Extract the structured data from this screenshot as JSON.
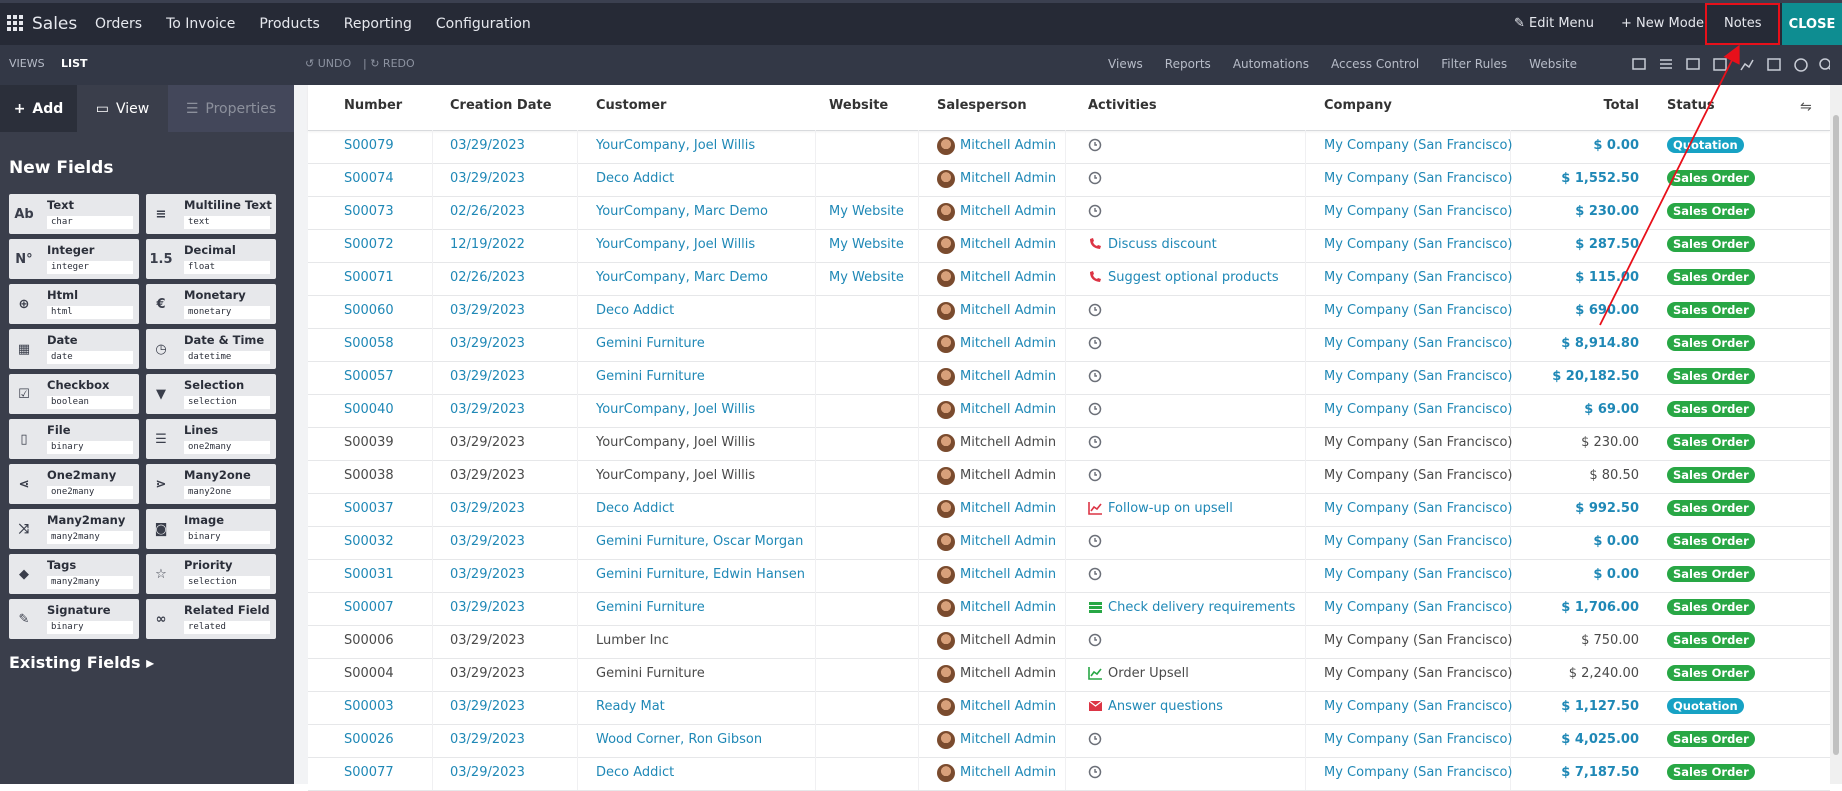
{
  "navbar": {
    "app": "Sales",
    "menus": [
      "Orders",
      "To Invoice",
      "Products",
      "Reporting",
      "Configuration"
    ],
    "edit_menu": "Edit Menu",
    "new_model": "New Model",
    "notes": "Notes",
    "close": "CLOSE"
  },
  "toolbar": {
    "views_tab": "VIEWS",
    "list_tab": "LIST",
    "undo": "UNDO",
    "redo": "REDO",
    "links": [
      "Views",
      "Reports",
      "Automations",
      "Access Control",
      "Filter Rules",
      "Website"
    ]
  },
  "sidebar": {
    "tabs": [
      "Add",
      "View",
      "Properties"
    ],
    "new_fields_title": "New Fields",
    "existing_fields": "Existing Fields",
    "fields": [
      {
        "icon": "Ab",
        "label": "Text",
        "type": "char"
      },
      {
        "icon": "≡",
        "label": "Multiline Text",
        "type": "text"
      },
      {
        "icon": "N°",
        "label": "Integer",
        "type": "integer"
      },
      {
        "icon": "1.5",
        "label": "Decimal",
        "type": "float"
      },
      {
        "icon": "⊕",
        "label": "Html",
        "type": "html"
      },
      {
        "icon": "€",
        "label": "Monetary",
        "type": "monetary"
      },
      {
        "icon": "▦",
        "label": "Date",
        "type": "date"
      },
      {
        "icon": "◷",
        "label": "Date & Time",
        "type": "datetime"
      },
      {
        "icon": "☑",
        "label": "Checkbox",
        "type": "boolean"
      },
      {
        "icon": "▼",
        "label": "Selection",
        "type": "selection"
      },
      {
        "icon": "▯",
        "label": "File",
        "type": "binary"
      },
      {
        "icon": "☰",
        "label": "Lines",
        "type": "one2many"
      },
      {
        "icon": "⋖",
        "label": "One2many",
        "type": "one2many"
      },
      {
        "icon": "⋗",
        "label": "Many2one",
        "type": "many2one"
      },
      {
        "icon": "⤨",
        "label": "Many2many",
        "type": "many2many"
      },
      {
        "icon": "◙",
        "label": "Image",
        "type": "binary"
      },
      {
        "icon": "◆",
        "label": "Tags",
        "type": "many2many"
      },
      {
        "icon": "☆",
        "label": "Priority",
        "type": "selection"
      },
      {
        "icon": "✎",
        "label": "Signature",
        "type": "binary"
      },
      {
        "icon": "∞",
        "label": "Related Field",
        "type": "related"
      }
    ]
  },
  "table": {
    "columns": [
      "Number",
      "Creation Date",
      "Customer",
      "Website",
      "Salesperson",
      "Activities",
      "Company",
      "Total",
      "Status"
    ],
    "rows": [
      {
        "number": "S00079",
        "date": "03/29/2023",
        "customer": "YourCompany, Joel Willis",
        "salesperson": "Mitchell Admin",
        "activity": {
          "icon": "clock"
        },
        "company": "My Company (San Francisco)",
        "total": "$ 0.00",
        "status": "Quotation",
        "color": "#1f88b6"
      },
      {
        "number": "S00074",
        "date": "03/29/2023",
        "customer": "Deco Addict",
        "salesperson": "Mitchell Admin",
        "activity": {
          "icon": "clock"
        },
        "company": "My Company (San Francisco)",
        "total": "$ 1,552.50",
        "status": "Sales Order",
        "color": "#1f88b6"
      },
      {
        "number": "S00073",
        "date": "02/26/2023",
        "customer": "YourCompany, Marc Demo",
        "website": "My Website",
        "salesperson": "Mitchell Admin",
        "activity": {
          "icon": "clock"
        },
        "company": "My Company (San Francisco)",
        "total": "$ 230.00",
        "status": "Sales Order",
        "color": "#1f88b6"
      },
      {
        "number": "S00072",
        "date": "12/19/2022",
        "customer": "YourCompany, Joel Willis",
        "website": "My Website",
        "salesperson": "Mitchell Admin",
        "activity": {
          "icon": "phone",
          "icon_color": "#dc3545",
          "text": "Discuss discount"
        },
        "company": "My Company (San Francisco)",
        "total": "$ 287.50",
        "status": "Sales Order",
        "color": "#1f88b6"
      },
      {
        "number": "S00071",
        "date": "02/26/2023",
        "customer": "YourCompany, Marc Demo",
        "website": "My Website",
        "salesperson": "Mitchell Admin",
        "activity": {
          "icon": "phone",
          "icon_color": "#dc3545",
          "text": "Suggest optional products"
        },
        "company": "My Company (San Francisco)",
        "total": "$ 115.00",
        "status": "Sales Order",
        "color": "#1f88b6"
      },
      {
        "number": "S00060",
        "date": "03/29/2023",
        "customer": "Deco Addict",
        "salesperson": "Mitchell Admin",
        "activity": {
          "icon": "clock"
        },
        "company": "My Company (San Francisco)",
        "total": "$ 690.00",
        "status": "Sales Order",
        "color": "#1f88b6"
      },
      {
        "number": "S00058",
        "date": "03/29/2023",
        "customer": "Gemini Furniture",
        "salesperson": "Mitchell Admin",
        "activity": {
          "icon": "clock"
        },
        "company": "My Company (San Francisco)",
        "total": "$ 8,914.80",
        "status": "Sales Order",
        "color": "#1f88b6"
      },
      {
        "number": "S00057",
        "date": "03/29/2023",
        "customer": "Gemini Furniture",
        "salesperson": "Mitchell Admin",
        "activity": {
          "icon": "clock"
        },
        "company": "My Company (San Francisco)",
        "total": "$ 20,182.50",
        "status": "Sales Order",
        "color": "#1f88b6"
      },
      {
        "number": "S00040",
        "date": "03/29/2023",
        "customer": "YourCompany, Joel Willis",
        "salesperson": "Mitchell Admin",
        "activity": {
          "icon": "clock"
        },
        "company": "My Company (San Francisco)",
        "total": "$ 69.00",
        "status": "Sales Order",
        "color": "#1f88b6"
      },
      {
        "number": "S00039",
        "date": "03/29/2023",
        "customer": "YourCompany, Joel Willis",
        "salesperson": "Mitchell Admin",
        "activity": {
          "icon": "clock"
        },
        "company": "My Company (San Francisco)",
        "total": "$ 230.00",
        "status": "Sales Order",
        "color": "#4a4a4a"
      },
      {
        "number": "S00038",
        "date": "03/29/2023",
        "customer": "YourCompany, Joel Willis",
        "salesperson": "Mitchell Admin",
        "activity": {
          "icon": "clock"
        },
        "company": "My Company (San Francisco)",
        "total": "$ 80.50",
        "status": "Sales Order",
        "color": "#4a4a4a"
      },
      {
        "number": "S00037",
        "date": "03/29/2023",
        "customer": "Deco Addict",
        "salesperson": "Mitchell Admin",
        "activity": {
          "icon": "chart",
          "icon_color": "#dc3545",
          "text": "Follow-up on upsell"
        },
        "company": "My Company (San Francisco)",
        "total": "$ 992.50",
        "status": "Sales Order",
        "color": "#1f88b6"
      },
      {
        "number": "S00032",
        "date": "03/29/2023",
        "customer": "Gemini Furniture, Oscar Morgan",
        "salesperson": "Mitchell Admin",
        "activity": {
          "icon": "clock"
        },
        "company": "My Company (San Francisco)",
        "total": "$ 0.00",
        "status": "Sales Order",
        "color": "#1f88b6"
      },
      {
        "number": "S00031",
        "date": "03/29/2023",
        "customer": "Gemini Furniture, Edwin Hansen",
        "salesperson": "Mitchell Admin",
        "activity": {
          "icon": "clock"
        },
        "company": "My Company (San Francisco)",
        "total": "$ 0.00",
        "status": "Sales Order",
        "color": "#1f88b6"
      },
      {
        "number": "S00007",
        "date": "03/29/2023",
        "customer": "Gemini Furniture",
        "salesperson": "Mitchell Admin",
        "activity": {
          "icon": "list",
          "icon_color": "#28a745",
          "text": "Check delivery requirements"
        },
        "company": "My Company (San Francisco)",
        "total": "$ 1,706.00",
        "status": "Sales Order",
        "color": "#1f88b6"
      },
      {
        "number": "S00006",
        "date": "03/29/2023",
        "customer": "Lumber Inc",
        "salesperson": "Mitchell Admin",
        "activity": {
          "icon": "clock"
        },
        "company": "My Company (San Francisco)",
        "total": "$ 750.00",
        "status": "Sales Order",
        "color": "#4a4a4a"
      },
      {
        "number": "S00004",
        "date": "03/29/2023",
        "customer": "Gemini Furniture",
        "salesperson": "Mitchell Admin",
        "activity": {
          "icon": "chart",
          "icon_color": "#28a745",
          "text": "Order Upsell"
        },
        "company": "My Company (San Francisco)",
        "total": "$ 2,240.00",
        "status": "Sales Order",
        "color": "#4a4a4a"
      },
      {
        "number": "S00003",
        "date": "03/29/2023",
        "customer": "Ready Mat",
        "salesperson": "Mitchell Admin",
        "activity": {
          "icon": "envelope",
          "icon_color": "#dc3545",
          "text": "Answer questions"
        },
        "company": "My Company (San Francisco)",
        "total": "$ 1,127.50",
        "status": "Quotation",
        "color": "#1f88b6"
      },
      {
        "number": "S00026",
        "date": "03/29/2023",
        "customer": "Wood Corner, Ron Gibson",
        "salesperson": "Mitchell Admin",
        "activity": {
          "icon": "clock"
        },
        "company": "My Company (San Francisco)",
        "total": "$ 4,025.00",
        "status": "Sales Order",
        "color": "#1f88b6"
      },
      {
        "number": "S00077",
        "date": "03/29/2023",
        "customer": "Deco Addict",
        "salesperson": "Mitchell Admin",
        "activity": {
          "icon": "clock"
        },
        "company": "My Company (San Francisco)",
        "total": "$ 7,187.50",
        "status": "Sales Order",
        "color": "#1f88b6"
      }
    ],
    "status_colors": {
      "Quotation": "#17a2c4",
      "Sales Order": "#28a745"
    }
  }
}
